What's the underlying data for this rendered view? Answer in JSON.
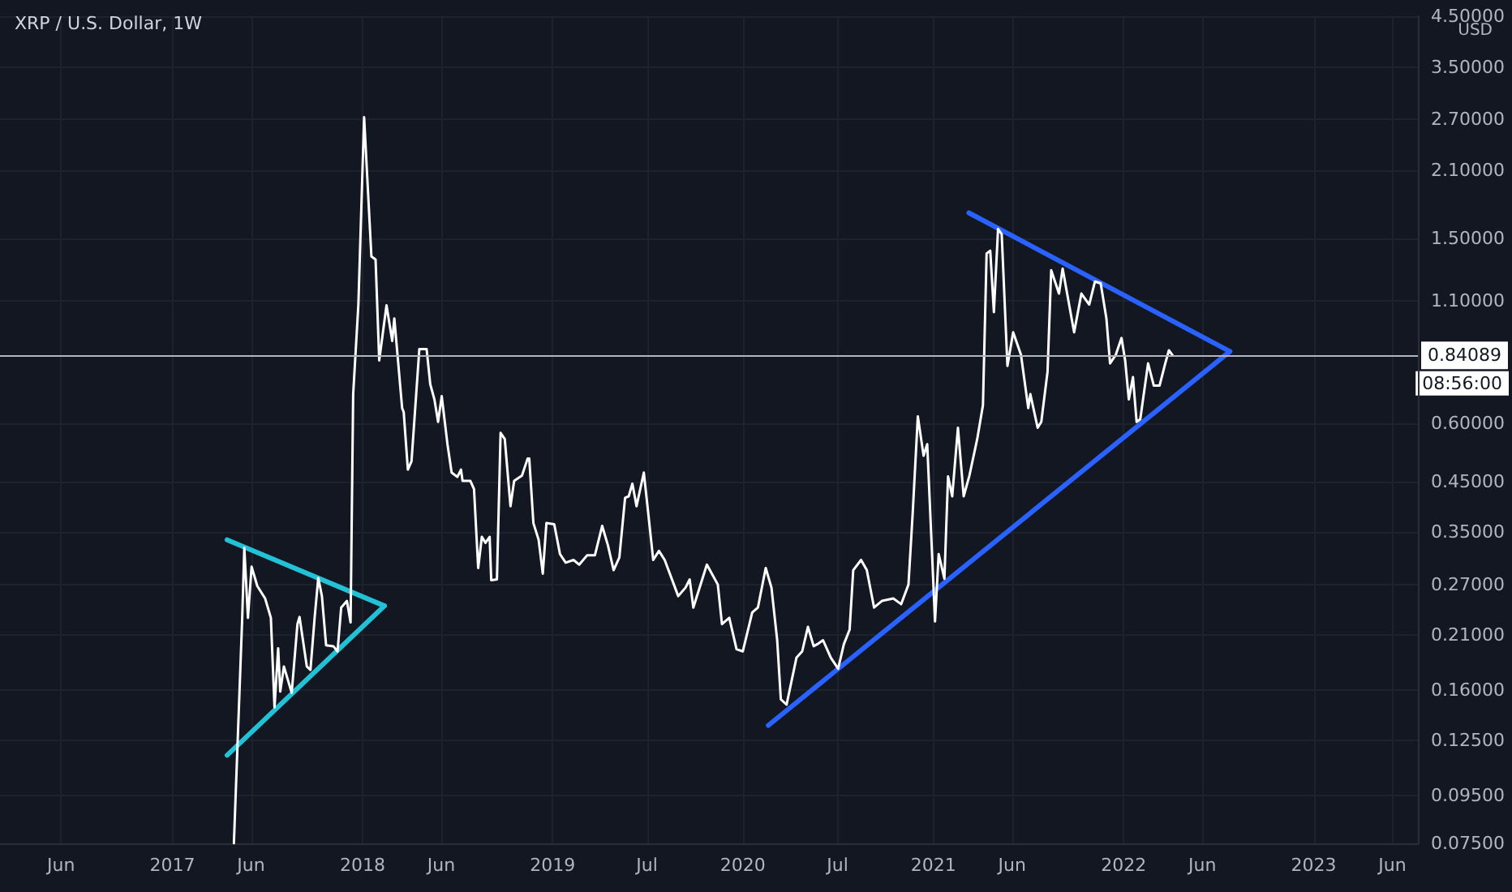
{
  "chart_data": {
    "type": "line",
    "title": "XRP / U.S. Dollar, 1W",
    "ylabel": "USD",
    "log": true,
    "grid": true,
    "marker": "none",
    "line_style": "solid",
    "xlim": [
      "2016-02-05",
      "2023-07-20"
    ],
    "xticks": [
      {
        "value": "2016-06-01",
        "label": "Jun"
      },
      {
        "value": "2017-01-01",
        "label": "2017"
      },
      {
        "value": "2017-06-01",
        "label": "Jun"
      },
      {
        "value": "2018-01-01",
        "label": "2018"
      },
      {
        "value": "2018-06-01",
        "label": "Jun"
      },
      {
        "value": "2019-01-01",
        "label": "2019"
      },
      {
        "value": "2019-07-01",
        "label": "Jul"
      },
      {
        "value": "2020-01-01",
        "label": "2020"
      },
      {
        "value": "2020-07-01",
        "label": "Jul"
      },
      {
        "value": "2021-01-01",
        "label": "2021"
      },
      {
        "value": "2021-06-01",
        "label": "Jun"
      },
      {
        "value": "2022-01-01",
        "label": "2022"
      },
      {
        "value": "2022-06-01",
        "label": "Jun"
      },
      {
        "value": "2023-01-01",
        "label": "2023"
      },
      {
        "value": "2023-06-01",
        "label": "Jun"
      }
    ],
    "ylim": [
      0.075,
      4.5
    ],
    "yticks": [
      {
        "value": 0.075,
        "label": "0.07500"
      },
      {
        "value": 0.095,
        "label": "0.09500"
      },
      {
        "value": 0.125,
        "label": "0.12500"
      },
      {
        "value": 0.16,
        "label": "0.16000"
      },
      {
        "value": 0.21,
        "label": "0.21000"
      },
      {
        "value": 0.27,
        "label": "0.27000"
      },
      {
        "value": 0.35,
        "label": "0.35000"
      },
      {
        "value": 0.45,
        "label": "0.45000"
      },
      {
        "value": 0.6,
        "label": "0.60000"
      },
      {
        "value": 1.1,
        "label": "1.10000"
      },
      {
        "value": 1.5,
        "label": "1.50000"
      },
      {
        "value": 2.1,
        "label": "2.10000"
      },
      {
        "value": 2.7,
        "label": "2.70000"
      },
      {
        "value": 3.5,
        "label": "3.50000"
      },
      {
        "value": 4.5,
        "label": "4.50000"
      }
    ],
    "ref_lines": [
      {
        "axis": "y",
        "value": 0.84089,
        "label": "0.84089",
        "color": "#b2b5be"
      }
    ],
    "annotations": [
      "08:56:00"
    ],
    "series": [
      {
        "color": "#ffffff",
        "x": [
          "2017-04-29",
          "2017-05-15",
          "2017-05-19",
          "2017-05-26",
          "2017-06-02",
          "2017-06-13",
          "2017-06-28",
          "2017-07-09",
          "2017-07-16",
          "2017-07-23",
          "2017-07-27",
          "2017-08-03",
          "2017-08-18",
          "2017-08-29",
          "2017-09-02",
          "2017-09-16",
          "2017-09-23",
          "2017-10-01",
          "2017-10-08",
          "2017-10-15",
          "2017-10-23",
          "2017-11-06",
          "2017-11-14",
          "2017-11-21",
          "2017-12-02",
          "2017-12-09",
          "2017-12-14",
          "2017-12-24",
          "2018-01-04",
          "2018-01-18",
          "2018-01-26",
          "2018-02-02",
          "2018-02-16",
          "2018-02-27",
          "2018-03-03",
          "2018-03-18",
          "2018-03-21",
          "2018-03-29",
          "2018-04-05",
          "2018-04-20",
          "2018-05-04",
          "2018-05-11",
          "2018-05-19",
          "2018-05-26",
          "2018-06-02",
          "2018-06-13",
          "2018-06-21",
          "2018-07-02",
          "2018-07-09",
          "2018-07-12",
          "2018-07-27",
          "2018-08-03",
          "2018-08-11",
          "2018-08-18",
          "2018-08-25",
          "2018-09-02",
          "2018-09-05",
          "2018-09-16",
          "2018-09-23",
          "2018-10-01",
          "2018-10-12",
          "2018-10-19",
          "2018-11-03",
          "2018-11-14",
          "2018-11-17",
          "2018-11-25",
          "2018-12-05",
          "2018-12-13",
          "2018-12-20",
          "2019-01-04",
          "2019-01-15",
          "2019-01-26",
          "2019-02-10",
          "2019-02-21",
          "2019-03-08",
          "2019-03-23",
          "2019-04-06",
          "2019-04-17",
          "2019-04-28",
          "2019-05-09",
          "2019-05-20",
          "2019-05-27",
          "2019-06-03",
          "2019-06-11",
          "2019-06-25",
          "2019-07-02",
          "2019-07-13",
          "2019-07-24",
          "2019-08-04",
          "2019-08-30",
          "2019-09-13",
          "2019-09-21",
          "2019-09-28",
          "2019-10-24",
          "2019-11-14",
          "2019-11-22",
          "2019-12-06",
          "2019-12-20",
          "2020-01-01",
          "2020-01-19",
          "2020-01-30",
          "2020-02-14",
          "2020-02-25",
          "2020-03-07",
          "2020-03-14",
          "2020-03-25",
          "2020-04-13",
          "2020-04-24",
          "2020-05-05",
          "2020-05-16",
          "2020-05-23",
          "2020-06-03",
          "2020-06-18",
          "2020-07-02",
          "2020-07-13",
          "2020-07-24",
          "2020-07-31",
          "2020-08-15",
          "2020-08-26",
          "2020-09-09",
          "2020-09-24",
          "2020-10-16",
          "2020-10-31",
          "2020-11-14",
          "2020-11-22",
          "2020-12-02",
          "2020-12-13",
          "2020-12-20",
          "2021-01-04",
          "2021-01-11",
          "2021-01-22",
          "2021-01-29",
          "2021-02-06",
          "2021-02-17",
          "2021-02-28",
          "2021-03-11",
          "2021-03-26",
          "2021-04-06",
          "2021-04-13",
          "2021-04-20",
          "2021-04-27",
          "2021-05-05",
          "2021-05-12",
          "2021-05-23",
          "2021-06-03",
          "2021-06-18",
          "2021-07-02",
          "2021-07-06",
          "2021-07-20",
          "2021-07-27",
          "2021-08-08",
          "2021-08-15",
          "2021-08-30",
          "2021-09-06",
          "2021-09-28",
          "2021-10-12",
          "2021-10-27",
          "2021-11-07",
          "2021-11-18",
          "2021-11-29",
          "2021-12-06",
          "2021-12-17",
          "2021-12-28",
          "2022-01-04",
          "2022-01-11",
          "2022-01-19",
          "2022-01-26",
          "2022-02-02",
          "2022-02-17",
          "2022-02-28",
          "2022-03-11",
          "2022-03-22",
          "2022-03-29",
          "2022-04-05"
        ],
        "values": [
          0.075,
          0.229,
          0.324,
          0.229,
          0.295,
          0.268,
          0.252,
          0.229,
          0.147,
          0.197,
          0.159,
          0.18,
          0.158,
          0.222,
          0.23,
          0.18,
          0.177,
          0.229,
          0.279,
          0.255,
          0.2,
          0.199,
          0.194,
          0.241,
          0.249,
          0.224,
          0.693,
          1.08,
          2.73,
          1.37,
          1.35,
          0.819,
          1.076,
          0.902,
          1.008,
          0.647,
          0.634,
          0.477,
          0.497,
          0.866,
          0.866,
          0.728,
          0.675,
          0.604,
          0.686,
          0.541,
          0.47,
          0.46,
          0.477,
          0.451,
          0.451,
          0.433,
          0.293,
          0.342,
          0.332,
          0.342,
          0.276,
          0.277,
          0.572,
          0.555,
          0.398,
          0.451,
          0.463,
          0.504,
          0.504,
          0.366,
          0.337,
          0.285,
          0.366,
          0.364,
          0.314,
          0.301,
          0.305,
          0.298,
          0.312,
          0.312,
          0.361,
          0.328,
          0.29,
          0.309,
          0.415,
          0.418,
          0.445,
          0.398,
          0.47,
          0.398,
          0.305,
          0.319,
          0.305,
          0.255,
          0.266,
          0.277,
          0.241,
          0.298,
          0.27,
          0.222,
          0.229,
          0.196,
          0.194,
          0.235,
          0.241,
          0.293,
          0.266,
          0.205,
          0.153,
          0.149,
          0.188,
          0.194,
          0.219,
          0.199,
          0.201,
          0.205,
          0.188,
          0.178,
          0.201,
          0.216,
          0.29,
          0.305,
          0.29,
          0.241,
          0.249,
          0.252,
          0.245,
          0.27,
          0.382,
          0.621,
          0.511,
          0.541,
          0.225,
          0.314,
          0.278,
          0.461,
          0.418,
          0.587,
          0.418,
          0.463,
          0.555,
          0.656,
          1.39,
          1.41,
          1.04,
          1.57,
          1.53,
          0.797,
          0.941,
          0.842,
          0.647,
          0.693,
          0.587,
          0.604,
          0.774,
          1.28,
          1.14,
          1.29,
          0.941,
          1.14,
          1.08,
          1.21,
          1.2,
          1.008,
          0.807,
          0.842,
          0.915,
          0.819,
          0.675,
          0.754,
          0.604,
          0.612,
          0.807,
          0.723,
          0.723,
          0.807,
          0.861,
          0.84
        ]
      },
      {
        "type": "line",
        "color": "#22c1d6",
        "x": [
          "2017-04-16",
          "2018-02-12"
        ],
        "values": [
          0.337,
          0.243
        ]
      },
      {
        "type": "line",
        "color": "#22c1d6",
        "x": [
          "2017-04-16",
          "2018-02-12"
        ],
        "values": [
          0.116,
          0.243
        ]
      },
      {
        "type": "line",
        "color": "#2962ff",
        "x": [
          "2021-03-10",
          "2022-07-24"
        ],
        "values": [
          1.7,
          0.856
        ]
      },
      {
        "type": "line",
        "color": "#2962ff",
        "x": [
          "2020-02-19",
          "2022-07-24"
        ],
        "values": [
          0.1345,
          0.856
        ]
      }
    ]
  }
}
